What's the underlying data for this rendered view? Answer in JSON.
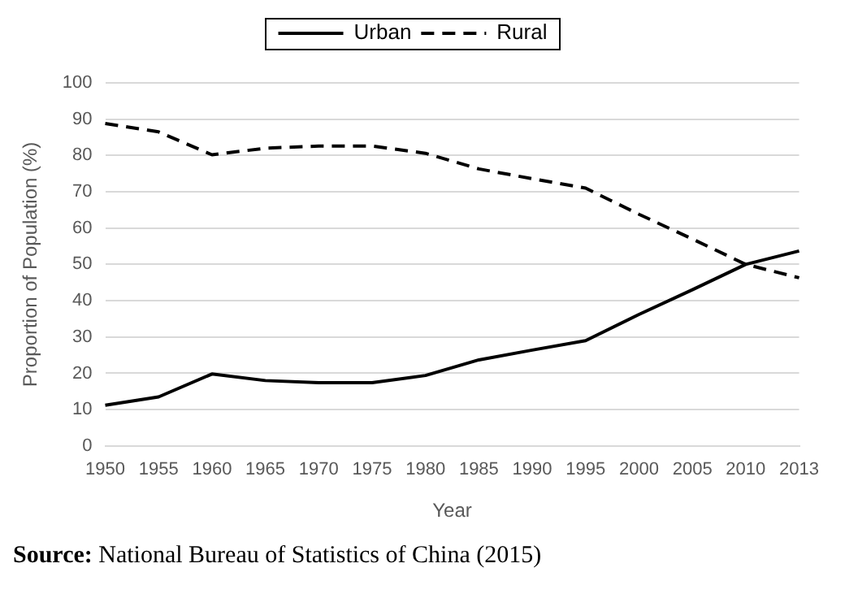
{
  "chart_data": {
    "type": "line",
    "xlabel": "Year",
    "ylabel": "Proportion of Population (%)",
    "categories": [
      "1950",
      "1955",
      "1960",
      "1965",
      "1970",
      "1975",
      "1980",
      "1985",
      "1990",
      "1995",
      "2000",
      "2005",
      "2010",
      "2013"
    ],
    "series": [
      {
        "name": "Urban",
        "color": "#000000",
        "line_style": "solid",
        "values": [
          11.2,
          13.5,
          19.8,
          18,
          17.4,
          17.4,
          19.4,
          23.7,
          26.4,
          29,
          36.2,
          43,
          50,
          53.7
        ]
      },
      {
        "name": "Rural",
        "color": "#000000",
        "line_style": "dashed",
        "values": [
          88.8,
          86.5,
          80.2,
          82,
          82.6,
          82.6,
          80.6,
          76.3,
          73.6,
          71,
          63.8,
          57,
          50,
          46.3
        ]
      }
    ],
    "ylim": [
      0,
      100
    ],
    "yticks": [
      0,
      10,
      20,
      30,
      40,
      50,
      60,
      70,
      80,
      90,
      100
    ],
    "grid": "y",
    "legend": "top",
    "marker": "none",
    "annotations": [
      "Source: National Bureau of Statistics of China (2015)"
    ]
  }
}
